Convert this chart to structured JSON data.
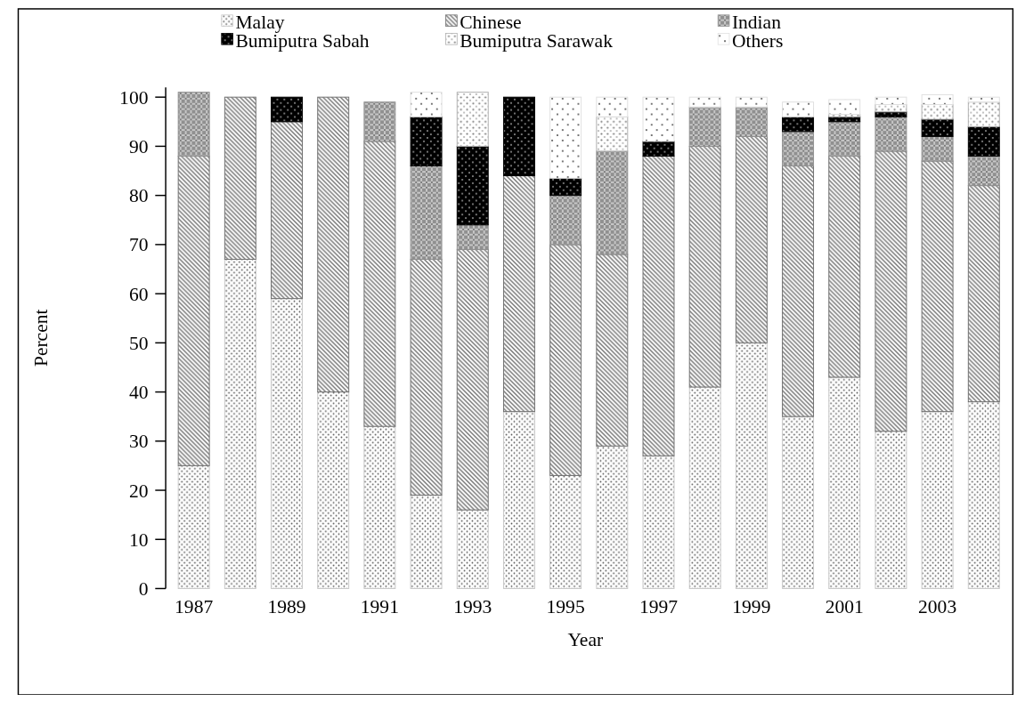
{
  "chart_data": {
    "type": "bar",
    "stacked": true,
    "xlabel": "Year",
    "ylabel": "Percent",
    "legend": "top",
    "grid": false,
    "categories": [
      "1987",
      null,
      "1989",
      null,
      "1991",
      null,
      "1993",
      null,
      "1995",
      null,
      "1997",
      null,
      "1999",
      null,
      "2001",
      null,
      "2003",
      null
    ],
    "ylim": [
      0,
      102
    ],
    "yticks": [
      0,
      10,
      20,
      30,
      40,
      50,
      60,
      70,
      80,
      90,
      100
    ],
    "series": [
      {
        "name": "Malay",
        "color": "#c8c8c8",
        "values": [
          25,
          67,
          59,
          40,
          33,
          19,
          16,
          36,
          23,
          29,
          27,
          41,
          50,
          35,
          43,
          32,
          36,
          38
        ]
      },
      {
        "name": "Chinese",
        "color": "#707070",
        "values": [
          63,
          33,
          36,
          60,
          58,
          48,
          53,
          48,
          47,
          39,
          61,
          49,
          42,
          51,
          45,
          57,
          51,
          44
        ]
      },
      {
        "name": "Indian",
        "color": "#909090",
        "values": [
          13,
          null,
          null,
          null,
          8,
          19,
          5,
          null,
          10,
          21,
          null,
          8,
          6,
          7,
          7,
          7,
          5,
          6
        ]
      },
      {
        "name": "Bumiputra Sabah",
        "color": "#000000",
        "values": [
          null,
          null,
          5,
          null,
          null,
          10,
          16,
          16,
          3.5,
          null,
          3,
          null,
          null,
          3,
          1,
          1,
          3.5,
          6
        ]
      },
      {
        "name": "Bumiputra Sarawak",
        "color": "#b0b0b0",
        "values": [
          null,
          null,
          null,
          null,
          null,
          null,
          11,
          null,
          null,
          7,
          null,
          null,
          null,
          null,
          0.5,
          1.5,
          3,
          5
        ]
      },
      {
        "name": "Others",
        "color": "#e0e0e0",
        "values": [
          null,
          null,
          null,
          null,
          null,
          5,
          null,
          null,
          16.5,
          4,
          9,
          2,
          2,
          3,
          3,
          1.5,
          2,
          1
        ]
      }
    ]
  }
}
